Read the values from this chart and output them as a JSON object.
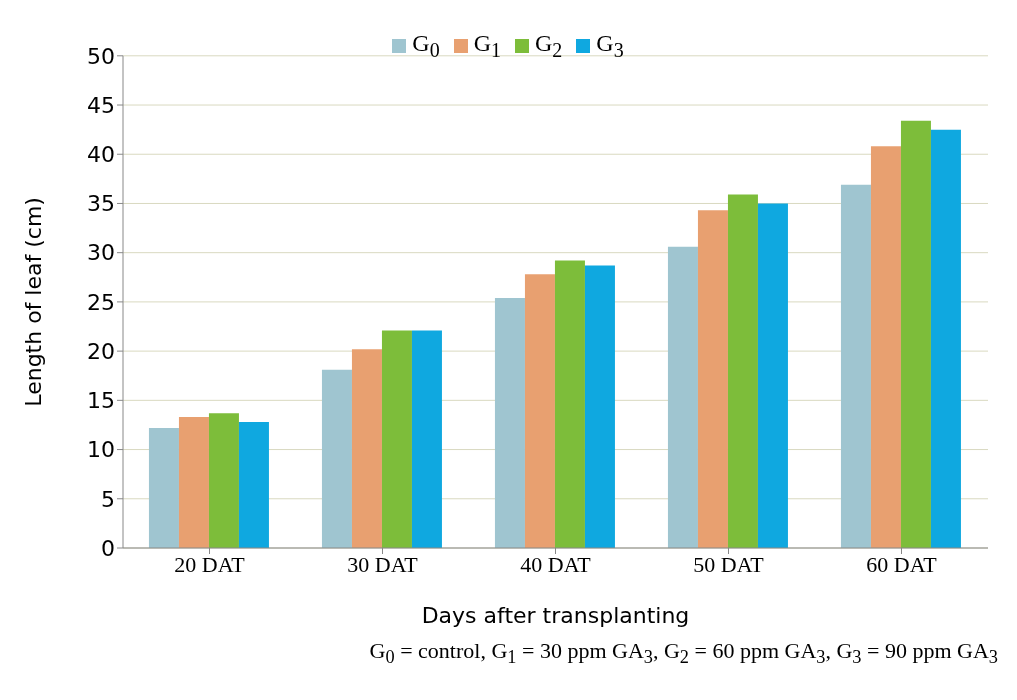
{
  "chart_data": {
    "type": "bar",
    "xlabel": "Days after transplanting",
    "ylabel": "Length of leaf (cm)",
    "categories": [
      "20 DAT",
      "30 DAT",
      "40 DAT",
      "50 DAT",
      "60 DAT"
    ],
    "series": [
      {
        "name": "G$_{0}$",
        "color": "#9fc5d0",
        "values": [
          12.2,
          18.1,
          25.4,
          30.6,
          36.9
        ]
      },
      {
        "name": "G$_{1}$",
        "color": "#e8a070",
        "values": [
          13.3,
          20.2,
          27.8,
          34.3,
          40.8
        ]
      },
      {
        "name": "G$_{2}$",
        "color": "#7dbd3a",
        "values": [
          13.7,
          22.1,
          29.2,
          35.9,
          43.4
        ]
      },
      {
        "name": "G$_{3}$",
        "color": "#0fa8e0",
        "values": [
          12.8,
          22.1,
          28.7,
          35.0,
          42.5
        ]
      }
    ],
    "ylim": [
      0,
      50
    ],
    "yticks": [
      0,
      5,
      10,
      15,
      20,
      25,
      30,
      35,
      40,
      45,
      50
    ],
    "grid": "y",
    "legend": "top",
    "annotations": [
      "G$_{0}$ = control, G$_{1}$ = 30 ppm GA$_{3}$, G$_{2}$ = 60 ppm GA$_{3}$, G$_{3}$ = 90 ppm GA$_{3}$"
    ]
  }
}
